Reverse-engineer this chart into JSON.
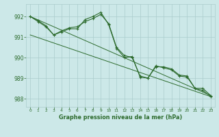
{
  "title": "Graphe pression niveau de la mer (hPa)",
  "bg_color": "#cce8e8",
  "grid_color": "#aacccc",
  "line_color": "#2d6b2d",
  "xlim": [
    -0.5,
    23.5
  ],
  "ylim": [
    987.6,
    992.6
  ],
  "yticks": [
    988,
    989,
    990,
    991,
    992
  ],
  "xticks": [
    0,
    1,
    2,
    3,
    4,
    5,
    6,
    7,
    8,
    9,
    10,
    11,
    12,
    13,
    14,
    15,
    16,
    17,
    18,
    19,
    20,
    21,
    22,
    23
  ],
  "line1_x": [
    0,
    1,
    2,
    3,
    4,
    5,
    6,
    7,
    8,
    9,
    10,
    11,
    12,
    13,
    14,
    15,
    16,
    17,
    18,
    19,
    20,
    21,
    22,
    23
  ],
  "line1_y": [
    992.0,
    991.8,
    991.55,
    991.1,
    991.25,
    991.4,
    991.4,
    991.85,
    992.0,
    992.2,
    991.6,
    990.45,
    990.0,
    990.05,
    989.05,
    989.0,
    989.55,
    989.55,
    989.45,
    989.15,
    989.1,
    988.5,
    988.5,
    988.15
  ],
  "line2_x": [
    0,
    1,
    2,
    3,
    4,
    5,
    6,
    7,
    8,
    9,
    10,
    11,
    12,
    13,
    14,
    15,
    16,
    17,
    18,
    19,
    20,
    21,
    22,
    23
  ],
  "line2_y": [
    992.0,
    991.75,
    991.5,
    991.1,
    991.3,
    991.45,
    991.5,
    991.75,
    991.9,
    992.1,
    991.65,
    990.5,
    990.1,
    990.0,
    989.1,
    989.0,
    989.6,
    989.5,
    989.4,
    989.1,
    989.05,
    988.5,
    988.4,
    988.1
  ],
  "line3_x": [
    0,
    23
  ],
  "line3_y": [
    992.0,
    988.15
  ],
  "line4_x": [
    0,
    23
  ],
  "line4_y": [
    991.1,
    988.1
  ]
}
